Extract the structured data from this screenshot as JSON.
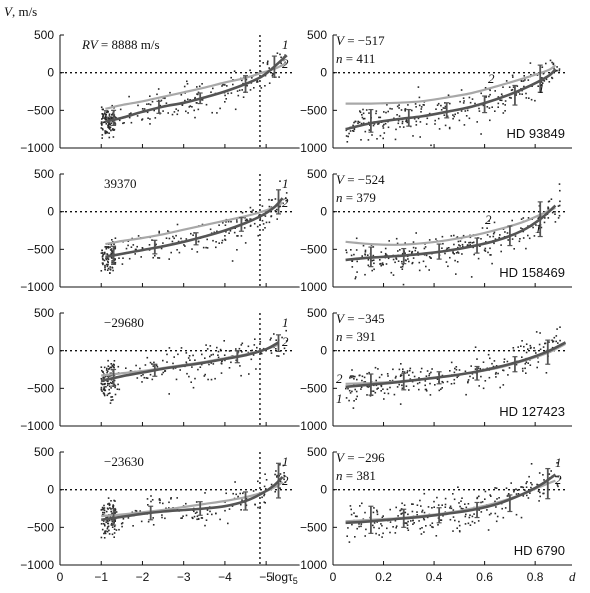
{
  "chart_data": {
    "type": "scatter",
    "y_axis_label": "V, m/s",
    "left_x_axis_label": "logτ5",
    "right_x_axis_label": "d",
    "left_xticks": [
      {
        "value": 0,
        "label": "0"
      },
      {
        "value": -1,
        "label": "−1"
      },
      {
        "value": -2,
        "label": "−2"
      },
      {
        "value": -3,
        "label": "−3"
      },
      {
        "value": -4,
        "label": "−4"
      },
      {
        "value": -5,
        "label": "−5"
      }
    ],
    "right_xticks": [
      {
        "value": 0,
        "label": "0"
      },
      {
        "value": 0.2,
        "label": "0.2"
      },
      {
        "value": 0.4,
        "label": "0.4"
      },
      {
        "value": 0.6,
        "label": "0.6"
      },
      {
        "value": 0.8,
        "label": "0.8"
      }
    ],
    "yticks": [
      {
        "value": 500,
        "label": "500"
      },
      {
        "value": 0,
        "label": "0"
      },
      {
        "value": -500,
        "label": "−500"
      },
      {
        "value": -1000,
        "label": "−1000"
      }
    ],
    "xlim_left": [
      0,
      -5.7
    ],
    "xlim_right": [
      0,
      0.93
    ],
    "ylim": [
      -1000,
      500
    ],
    "grid": false,
    "curve_labels": [
      "1",
      "2"
    ],
    "rows": [
      {
        "left": {
          "rv_prefix": "RV = ",
          "rv_value": "8888 m/s",
          "vline_x": -4.85,
          "curve1": {
            "x": [
              -1.1,
              -1.5,
              -2.0,
              -2.5,
              -3.0,
              -3.5,
              -4.0,
              -4.5,
              -4.9,
              -5.2,
              -5.5
            ],
            "y": [
              -650,
              -600,
              -520,
              -450,
              -400,
              -330,
              -250,
              -150,
              -50,
              80,
              230
            ]
          },
          "curve2": {
            "x": [
              -1.1,
              -1.5,
              -2.0,
              -2.5,
              -3.0,
              -3.5,
              -4.0,
              -4.5,
              -4.9,
              -5.2,
              -5.5
            ],
            "y": [
              -480,
              -430,
              -380,
              -320,
              -260,
              -200,
              -130,
              -70,
              0,
              50,
              130
            ]
          },
          "error_bars": [
            {
              "x": -1.3,
              "y": -600,
              "err": 100
            },
            {
              "x": -2.4,
              "y": -460,
              "err": 80
            },
            {
              "x": -3.4,
              "y": -340,
              "err": 70
            },
            {
              "x": -4.5,
              "y": -150,
              "err": 110
            },
            {
              "x": -5.2,
              "y": 80,
              "err": 140
            }
          ]
        },
        "right": {
          "v_text": "V = −517",
          "n_text": "n = 411",
          "star": "HD 93849",
          "curve1": {
            "x": [
              0.05,
              0.15,
              0.25,
              0.35,
              0.45,
              0.55,
              0.65,
              0.75,
              0.85,
              0.88
            ],
            "y": [
              -750,
              -670,
              -620,
              -580,
              -520,
              -450,
              -350,
              -220,
              -50,
              50
            ]
          },
          "curve2": {
            "x": [
              0.05,
              0.15,
              0.25,
              0.35,
              0.45,
              0.55,
              0.65,
              0.75,
              0.85,
              0.88
            ],
            "y": [
              -410,
              -410,
              -400,
              -380,
              -330,
              -270,
              -180,
              -80,
              30,
              100
            ]
          },
          "error_bars": [
            {
              "x": 0.15,
              "y": -640,
              "err": 150
            },
            {
              "x": 0.3,
              "y": -600,
              "err": 110
            },
            {
              "x": 0.45,
              "y": -500,
              "err": 100
            },
            {
              "x": 0.6,
              "y": -420,
              "err": 110
            },
            {
              "x": 0.72,
              "y": -300,
              "err": 130
            },
            {
              "x": 0.82,
              "y": -80,
              "err": 180
            }
          ]
        }
      },
      {
        "left": {
          "rv_prefix": "",
          "rv_value": "39370",
          "vline_x": -4.85,
          "curve1": {
            "x": [
              -1.1,
              -1.5,
              -2.0,
              -2.5,
              -3.0,
              -3.5,
              -4.0,
              -4.5,
              -4.9,
              -5.2,
              -5.4
            ],
            "y": [
              -600,
              -560,
              -510,
              -460,
              -400,
              -330,
              -250,
              -150,
              -50,
              60,
              180
            ]
          },
          "curve2": {
            "x": [
              -1.1,
              -1.5,
              -2.0,
              -2.5,
              -3.0,
              -3.5,
              -4.0,
              -4.5,
              -4.9,
              -5.2,
              -5.4
            ],
            "y": [
              -430,
              -390,
              -350,
              -300,
              -240,
              -180,
              -120,
              -60,
              0,
              60,
              120
            ]
          },
          "error_bars": [
            {
              "x": -1.3,
              "y": -580,
              "err": 120
            },
            {
              "x": -2.3,
              "y": -470,
              "err": 90
            },
            {
              "x": -3.3,
              "y": -360,
              "err": 80
            },
            {
              "x": -4.4,
              "y": -170,
              "err": 90
            },
            {
              "x": -5.3,
              "y": 130,
              "err": 160
            }
          ]
        },
        "right": {
          "v_text": "V = −524",
          "n_text": "n = 379",
          "star": "HD 158469",
          "curve1": {
            "x": [
              0.05,
              0.15,
              0.25,
              0.35,
              0.45,
              0.55,
              0.65,
              0.75,
              0.82,
              0.88
            ],
            "y": [
              -640,
              -610,
              -590,
              -560,
              -520,
              -460,
              -380,
              -250,
              -100,
              80
            ]
          },
          "curve2": {
            "x": [
              0.05,
              0.15,
              0.25,
              0.35,
              0.45,
              0.55,
              0.65,
              0.75,
              0.82,
              0.88
            ],
            "y": [
              -400,
              -430,
              -440,
              -420,
              -380,
              -320,
              -240,
              -140,
              -40,
              50
            ]
          },
          "error_bars": [
            {
              "x": 0.15,
              "y": -600,
              "err": 130
            },
            {
              "x": 0.28,
              "y": -590,
              "err": 100
            },
            {
              "x": 0.42,
              "y": -530,
              "err": 100
            },
            {
              "x": 0.57,
              "y": -450,
              "err": 100
            },
            {
              "x": 0.7,
              "y": -320,
              "err": 130
            },
            {
              "x": 0.82,
              "y": -100,
              "err": 230
            }
          ]
        }
      },
      {
        "left": {
          "rv_prefix": "",
          "rv_value": "−29680",
          "vline_x": -4.85,
          "curve1": {
            "x": [
              -1.0,
              -1.5,
              -2.0,
              -2.5,
              -3.0,
              -3.5,
              -4.0,
              -4.5,
              -5.0,
              -5.3
            ],
            "y": [
              -400,
              -340,
              -290,
              -240,
              -200,
              -160,
              -110,
              -60,
              20,
              110
            ]
          },
          "curve2": {
            "x": [
              -1.0,
              -1.5,
              -2.0,
              -2.5,
              -3.0,
              -3.5,
              -4.0,
              -4.5,
              -5.0,
              -5.3
            ],
            "y": [
              -330,
              -300,
              -270,
              -230,
              -190,
              -150,
              -100,
              -50,
              20,
              80
            ]
          },
          "error_bars": [
            {
              "x": -1.3,
              "y": -360,
              "err": 110
            },
            {
              "x": -2.3,
              "y": -260,
              "err": 80
            },
            {
              "x": -4.3,
              "y": -80,
              "err": 80
            },
            {
              "x": -5.3,
              "y": 100,
              "err": 110
            }
          ]
        },
        "right": {
          "v_text": "V = −345",
          "n_text": "n = 391",
          "star": "HD 127423",
          "curve1": {
            "x": [
              0.05,
              0.15,
              0.25,
              0.35,
              0.45,
              0.55,
              0.65,
              0.75,
              0.85,
              0.92
            ],
            "y": [
              -480,
              -450,
              -420,
              -380,
              -340,
              -290,
              -220,
              -130,
              -10,
              110
            ]
          },
          "curve2": {
            "x": [
              0.05,
              0.15,
              0.25,
              0.35,
              0.45,
              0.55,
              0.65,
              0.75,
              0.85,
              0.92
            ],
            "y": [
              -440,
              -430,
              -410,
              -380,
              -340,
              -290,
              -230,
              -140,
              -30,
              90
            ]
          },
          "error_bars": [
            {
              "x": 0.15,
              "y": -450,
              "err": 140
            },
            {
              "x": 0.28,
              "y": -410,
              "err": 110
            },
            {
              "x": 0.42,
              "y": -360,
              "err": 80
            },
            {
              "x": 0.57,
              "y": -300,
              "err": 90
            },
            {
              "x": 0.72,
              "y": -180,
              "err": 100
            },
            {
              "x": 0.85,
              "y": -20,
              "err": 160
            }
          ]
        }
      },
      {
        "left": {
          "rv_prefix": "",
          "rv_value": "−23630",
          "vline_x": -4.85,
          "curve1": {
            "x": [
              -1.0,
              -1.5,
              -2.0,
              -2.5,
              -3.0,
              -3.5,
              -4.0,
              -4.5,
              -4.9,
              -5.2,
              -5.4
            ],
            "y": [
              -400,
              -360,
              -320,
              -290,
              -270,
              -250,
              -220,
              -150,
              -50,
              60,
              170
            ]
          },
          "curve2": {
            "x": [
              -1.0,
              -1.5,
              -2.0,
              -2.5,
              -3.0,
              -3.5,
              -4.0,
              -4.5,
              -4.9,
              -5.2,
              -5.4
            ],
            "y": [
              -350,
              -330,
              -300,
              -270,
              -230,
              -190,
              -150,
              -100,
              -40,
              30,
              100
            ]
          },
          "error_bars": [
            {
              "x": -1.3,
              "y": -360,
              "err": 110
            },
            {
              "x": -2.2,
              "y": -310,
              "err": 90
            },
            {
              "x": -3.4,
              "y": -250,
              "err": 90
            },
            {
              "x": -4.5,
              "y": -150,
              "err": 120
            },
            {
              "x": -5.3,
              "y": 120,
              "err": 230
            }
          ]
        },
        "right": {
          "v_text": "V = −296",
          "n_text": "n = 381",
          "star": "HD 6790",
          "curve1": {
            "x": [
              0.05,
              0.15,
              0.25,
              0.35,
              0.45,
              0.55,
              0.65,
              0.75,
              0.82,
              0.88
            ],
            "y": [
              -440,
              -420,
              -390,
              -360,
              -320,
              -270,
              -190,
              -60,
              60,
              200
            ]
          },
          "curve2": {
            "x": [
              0.05,
              0.15,
              0.25,
              0.35,
              0.45,
              0.55,
              0.65,
              0.75,
              0.82,
              0.88
            ],
            "y": [
              -420,
              -400,
              -380,
              -350,
              -310,
              -250,
              -170,
              -60,
              40,
              120
            ]
          },
          "error_bars": [
            {
              "x": 0.15,
              "y": -400,
              "err": 180
            },
            {
              "x": 0.28,
              "y": -380,
              "err": 120
            },
            {
              "x": 0.42,
              "y": -340,
              "err": 100
            },
            {
              "x": 0.57,
              "y": -270,
              "err": 100
            },
            {
              "x": 0.7,
              "y": -180,
              "err": 110
            },
            {
              "x": 0.85,
              "y": 80,
              "err": 200
            }
          ]
        }
      }
    ]
  },
  "colors": {
    "curve1": "#555555",
    "curve2": "#a8a8a8",
    "points": "#2a2a2a",
    "axis": "#111111"
  }
}
